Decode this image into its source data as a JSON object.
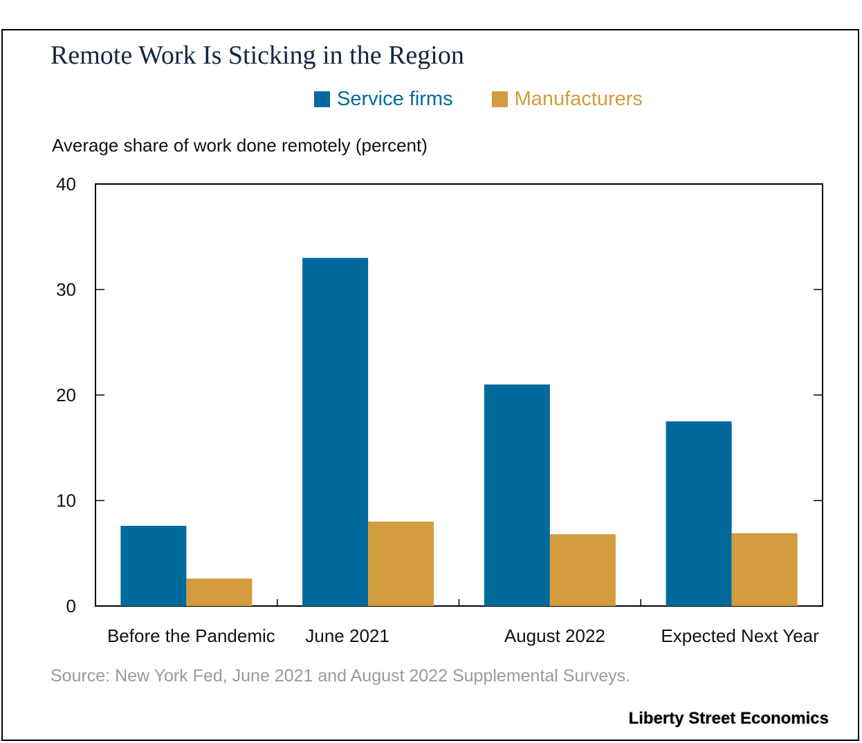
{
  "colors": {
    "service": "#006a9c",
    "manufacturers": "#d29c3f",
    "title": "#14263f",
    "source": "#9a9a9a"
  },
  "brand": "Liberty Street Economics",
  "source_note": "Source: New York Fed, June 2021 and August 2022 Supplemental Surveys.",
  "chart_data": {
    "type": "bar",
    "title": "Remote Work Is Sticking in the Region",
    "ylabel": "Average share of work done remotely (percent)",
    "xlabel": "",
    "categories": [
      "Before the Pandemic",
      "June 2021",
      "August 2022",
      "Expected Next Year"
    ],
    "series": [
      {
        "name": "Service firms",
        "color": "#006a9c",
        "values": [
          7.6,
          33.0,
          21.0,
          17.5
        ]
      },
      {
        "name": "Manufacturers",
        "color": "#d29c3f",
        "values": [
          2.6,
          8.0,
          6.8,
          6.9
        ]
      }
    ],
    "ylim": [
      0,
      40
    ],
    "yticks": [
      "0",
      "10",
      "20",
      "30",
      "40"
    ],
    "grid": false,
    "legend": "top-center"
  }
}
